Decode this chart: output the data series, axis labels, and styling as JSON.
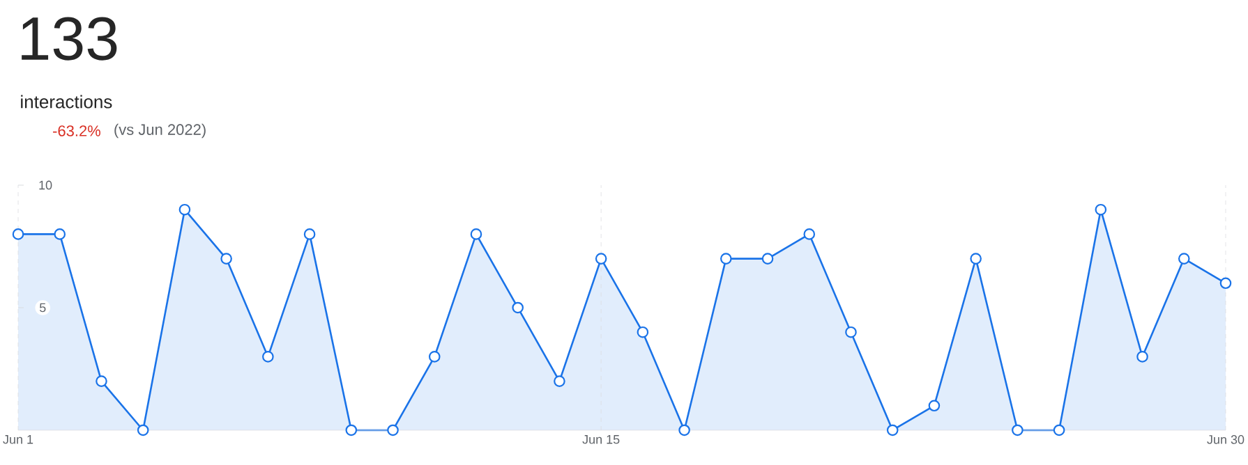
{
  "chart_data": {
    "type": "area",
    "title": "133",
    "subtitle": "interactions",
    "annotations": [
      "-63.2%",
      "(vs Jun 2022)"
    ],
    "x": [
      "--06-01",
      "--06-02",
      "--06-03",
      "--06-04",
      "--06-05",
      "--06-06",
      "--06-07",
      "--06-08",
      "--06-09",
      "--06-10",
      "--06-11",
      "--06-12",
      "--06-13",
      "--06-14",
      "--06-15",
      "--06-16",
      "--06-17",
      "--06-18",
      "--06-19",
      "--06-20",
      "--06-21",
      "--06-22",
      "--06-23",
      "--06-24",
      "--06-25",
      "--06-26",
      "--06-27",
      "--06-28",
      "--06-29",
      "--06-30"
    ],
    "series": [
      {
        "color": "#1a73e8",
        "values": [
          8,
          8,
          2,
          0,
          9,
          7,
          3,
          8,
          0,
          0,
          3,
          8,
          5,
          2,
          7,
          4,
          0,
          7,
          7,
          8,
          4,
          0,
          1,
          7,
          0,
          0,
          9,
          3,
          7,
          6
        ]
      }
    ],
    "xlim": [
      "--06-01",
      "--06-30"
    ],
    "xticks": [
      {
        "value": "--06-01",
        "label": "Jun 1"
      },
      {
        "value": "--06-15",
        "label": "Jun 15"
      },
      {
        "value": "--06-30",
        "label": "Jun 30"
      }
    ],
    "ylim": [
      0,
      10
    ],
    "yticks": [
      5,
      10
    ],
    "grid": "x",
    "marker": "circle",
    "line_style": "solid"
  }
}
